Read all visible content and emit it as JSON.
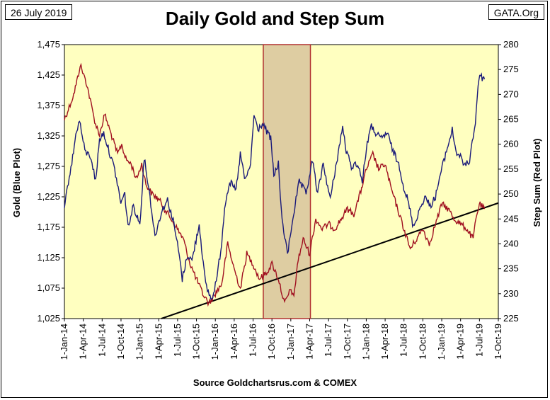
{
  "header": {
    "date": "26 July 2019",
    "org": "GATA.Org",
    "title": "Daily Gold and Step Sum"
  },
  "footer": {
    "source": "Source Goldchartsrus.com & COMEX"
  },
  "colors": {
    "plot_bg": "#ffffc0",
    "shade_fill": "#d8c49c",
    "shade_border": "#b03030",
    "gold_line": "#1a1a7a",
    "stepsum_line": "#a01020",
    "trend_line": "#000000"
  },
  "chart_data": {
    "type": "line",
    "title": "Daily Gold and Step Sum",
    "xlabel": "",
    "ylabel": "Gold  (Blue Plot)",
    "y2label": "Step Sum  (Red Plot)",
    "ylim": [
      1025,
      1475
    ],
    "y2lim": [
      225,
      280
    ],
    "xlim": [
      "2014-01-01",
      "2019-10-01"
    ],
    "x_ticks": [
      "1-Jan-14",
      "1-Apr-14",
      "1-Jul-14",
      "1-Oct-14",
      "1-Jan-15",
      "1-Apr-15",
      "1-Jul-15",
      "1-Oct-15",
      "1-Jan-16",
      "1-Apr-16",
      "1-Jul-16",
      "1-Oct-16",
      "1-Jan-17",
      "1-Apr-17",
      "1-Jul-17",
      "1-Oct-17",
      "1-Jan-18",
      "1-Apr-18",
      "1-Jul-18",
      "1-Oct-18",
      "1-Jan-19",
      "1-Apr-19",
      "1-Jul-19",
      "1-Oct-19"
    ],
    "y_ticks": [
      "1,025",
      "1,075",
      "1,125",
      "1,175",
      "1,225",
      "1,275",
      "1,325",
      "1,375",
      "1,425",
      "1,475"
    ],
    "y_tick_values": [
      1025,
      1075,
      1125,
      1175,
      1225,
      1275,
      1325,
      1375,
      1425,
      1475
    ],
    "y2_ticks": [
      "225",
      "230",
      "235",
      "240",
      "245",
      "250",
      "255",
      "260",
      "265",
      "270",
      "275",
      "280"
    ],
    "y2_tick_values": [
      225,
      230,
      235,
      240,
      245,
      250,
      255,
      260,
      265,
      270,
      275,
      280
    ],
    "shaded_region": {
      "x_start": "2016-08-20",
      "x_end": "2017-04-05"
    },
    "trend_line": {
      "x": [
        "2015-04-15",
        "2019-10-01"
      ],
      "y2": [
        225,
        248.2
      ]
    },
    "series": [
      {
        "name": "Gold (Blue Plot)",
        "axis": "left",
        "x": [
          "2014-01-01",
          "2014-01-20",
          "2014-02-10",
          "2014-03-01",
          "2014-03-15",
          "2014-04-10",
          "2014-05-10",
          "2014-06-01",
          "2014-06-20",
          "2014-07-10",
          "2014-08-05",
          "2014-09-01",
          "2014-10-01",
          "2014-10-20",
          "2014-11-05",
          "2014-12-01",
          "2015-01-01",
          "2015-01-22",
          "2015-02-15",
          "2015-03-15",
          "2015-04-15",
          "2015-05-15",
          "2015-06-15",
          "2015-07-10",
          "2015-07-25",
          "2015-08-20",
          "2015-09-10",
          "2015-10-15",
          "2015-11-15",
          "2015-12-15",
          "2016-01-10",
          "2016-02-01",
          "2016-02-15",
          "2016-03-10",
          "2016-04-10",
          "2016-05-01",
          "2016-05-25",
          "2016-06-20",
          "2016-07-06",
          "2016-07-25",
          "2016-08-15",
          "2016-09-10",
          "2016-09-25",
          "2016-10-10",
          "2016-11-01",
          "2016-11-15",
          "2016-12-01",
          "2016-12-15",
          "2017-01-10",
          "2017-02-10",
          "2017-03-15",
          "2017-04-15",
          "2017-05-10",
          "2017-06-06",
          "2017-07-10",
          "2017-08-01",
          "2017-09-08",
          "2017-09-25",
          "2017-10-20",
          "2017-11-20",
          "2017-12-12",
          "2018-01-05",
          "2018-01-25",
          "2018-02-15",
          "2018-03-10",
          "2018-04-11",
          "2018-05-10",
          "2018-06-10",
          "2018-07-01",
          "2018-07-20",
          "2018-08-16",
          "2018-09-10",
          "2018-10-10",
          "2018-11-05",
          "2018-12-01",
          "2018-12-20",
          "2019-01-15",
          "2019-02-20",
          "2019-03-10",
          "2019-04-01",
          "2019-04-23",
          "2019-05-15",
          "2019-06-01",
          "2019-06-12",
          "2019-06-25",
          "2019-07-03",
          "2019-07-15",
          "2019-07-26"
        ],
        "values": [
          1205,
          1250,
          1290,
          1335,
          1350,
          1300,
          1290,
          1250,
          1320,
          1330,
          1300,
          1270,
          1215,
          1230,
          1175,
          1210,
          1180,
          1290,
          1235,
          1160,
          1200,
          1220,
          1180,
          1130,
          1090,
          1130,
          1120,
          1180,
          1080,
          1055,
          1095,
          1150,
          1210,
          1250,
          1235,
          1295,
          1250,
          1280,
          1360,
          1335,
          1345,
          1330,
          1320,
          1260,
          1280,
          1200,
          1160,
          1130,
          1190,
          1250,
          1230,
          1285,
          1230,
          1280,
          1220,
          1265,
          1340,
          1300,
          1275,
          1280,
          1250,
          1315,
          1340,
          1330,
          1320,
          1330,
          1300,
          1275,
          1240,
          1220,
          1175,
          1200,
          1225,
          1210,
          1225,
          1255,
          1290,
          1335,
          1300,
          1290,
          1275,
          1285,
          1325,
          1345,
          1410,
          1425,
          1420,
          1418
        ]
      },
      {
        "name": "Step Sum (Red Plot)",
        "axis": "right",
        "x": [
          "2014-01-01",
          "2014-01-20",
          "2014-02-15",
          "2014-03-10",
          "2014-03-18",
          "2014-04-20",
          "2014-05-10",
          "2014-06-01",
          "2014-06-20",
          "2014-07-15",
          "2014-08-15",
          "2014-09-15",
          "2014-10-05",
          "2014-10-25",
          "2014-11-20",
          "2014-12-15",
          "2015-01-10",
          "2015-01-30",
          "2015-03-01",
          "2015-04-01",
          "2015-05-01",
          "2015-06-01",
          "2015-07-01",
          "2015-07-30",
          "2015-09-01",
          "2015-10-01",
          "2015-11-01",
          "2015-12-01",
          "2016-01-01",
          "2016-02-01",
          "2016-03-01",
          "2016-04-01",
          "2016-05-01",
          "2016-06-01",
          "2016-07-01",
          "2016-08-01",
          "2016-09-01",
          "2016-10-01",
          "2016-11-01",
          "2016-12-01",
          "2017-01-01",
          "2017-01-15",
          "2017-02-01",
          "2017-03-01",
          "2017-04-01",
          "2017-05-01",
          "2017-06-01",
          "2017-07-01",
          "2017-08-01",
          "2017-09-01",
          "2017-10-01",
          "2017-11-01",
          "2017-12-01",
          "2018-01-01",
          "2018-02-01",
          "2018-03-01",
          "2018-04-01",
          "2018-05-01",
          "2018-06-01",
          "2018-07-01",
          "2018-08-01",
          "2018-09-01",
          "2018-10-01",
          "2018-11-01",
          "2018-12-01",
          "2019-01-01",
          "2019-02-01",
          "2019-03-01",
          "2019-04-01",
          "2019-05-01",
          "2019-06-01",
          "2019-06-15",
          "2019-07-01",
          "2019-07-26"
        ],
        "values": [
          265,
          267,
          270,
          274,
          276,
          272,
          268,
          264,
          262,
          266,
          262,
          258,
          260,
          257,
          256,
          253,
          256,
          252,
          250,
          249,
          247,
          245,
          243,
          241,
          236,
          233,
          230,
          228,
          230,
          232,
          240,
          235,
          231,
          238,
          236,
          233,
          234,
          236,
          233,
          228,
          231,
          229,
          236,
          241,
          238,
          245,
          243,
          244,
          243,
          245,
          247,
          246,
          250,
          255,
          258,
          255,
          256,
          251,
          247,
          243,
          239,
          241,
          243,
          240,
          244,
          248,
          247,
          245,
          244,
          243,
          241,
          245,
          248,
          247
        ]
      }
    ]
  }
}
